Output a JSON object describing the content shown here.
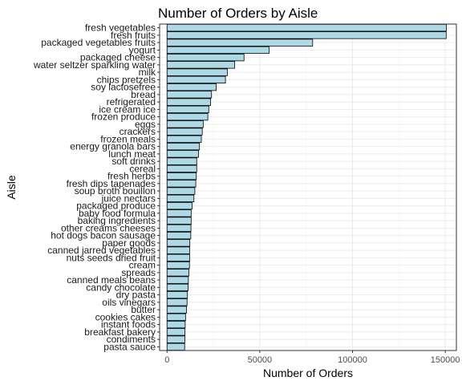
{
  "chart_data": {
    "type": "bar",
    "orientation": "horizontal",
    "title": "Number of Orders by Aisle",
    "xlabel": "Number of Orders",
    "ylabel": "Aisle",
    "xlim": [
      -4000,
      156000
    ],
    "xticks": [
      0,
      50000,
      100000,
      150000
    ],
    "xtick_labels": [
      "0",
      "50000",
      "100000",
      "150000"
    ],
    "grid": true,
    "bar_color": "#add8e6",
    "bar_edge_color": "#000000",
    "categories": [
      "fresh vegetables",
      "fresh fruits",
      "packaged vegetables fruits",
      "yogurt",
      "packaged cheese",
      "water seltzer sparkling water",
      "milk",
      "chips pretzels",
      "soy lactosefree",
      "bread",
      "refrigerated",
      "ice cream ice",
      "frozen produce",
      "eggs",
      "crackers",
      "frozen meals",
      "energy granola bars",
      "lunch meat",
      "soft drinks",
      "cereal",
      "fresh herbs",
      "fresh dips tapenades",
      "soup broth bouillon",
      "juice nectars",
      "packaged produce",
      "baby food formula",
      "baking ingredients",
      "other creams cheeses",
      "hot dogs bacon sausage",
      "paper goods",
      "canned jarred vegetables",
      "nuts seeds dried fruit",
      "cream",
      "spreads",
      "canned meals beans",
      "candy chocolate",
      "dry pasta",
      "oils vinegars",
      "butter",
      "cookies cakes",
      "instant foods",
      "breakfast bakery",
      "condiments",
      "pasta sauce"
    ],
    "values": [
      150600,
      150500,
      78500,
      55000,
      41500,
      36500,
      32500,
      31500,
      26500,
      24000,
      23500,
      22500,
      22000,
      19500,
      19000,
      18500,
      17500,
      17000,
      16000,
      16000,
      15800,
      15500,
      15000,
      14500,
      13500,
      13000,
      13000,
      12900,
      12800,
      12300,
      12200,
      12200,
      12100,
      11800,
      11500,
      11400,
      11000,
      10800,
      10500,
      10000,
      9800,
      9700,
      9600,
      9500
    ]
  }
}
